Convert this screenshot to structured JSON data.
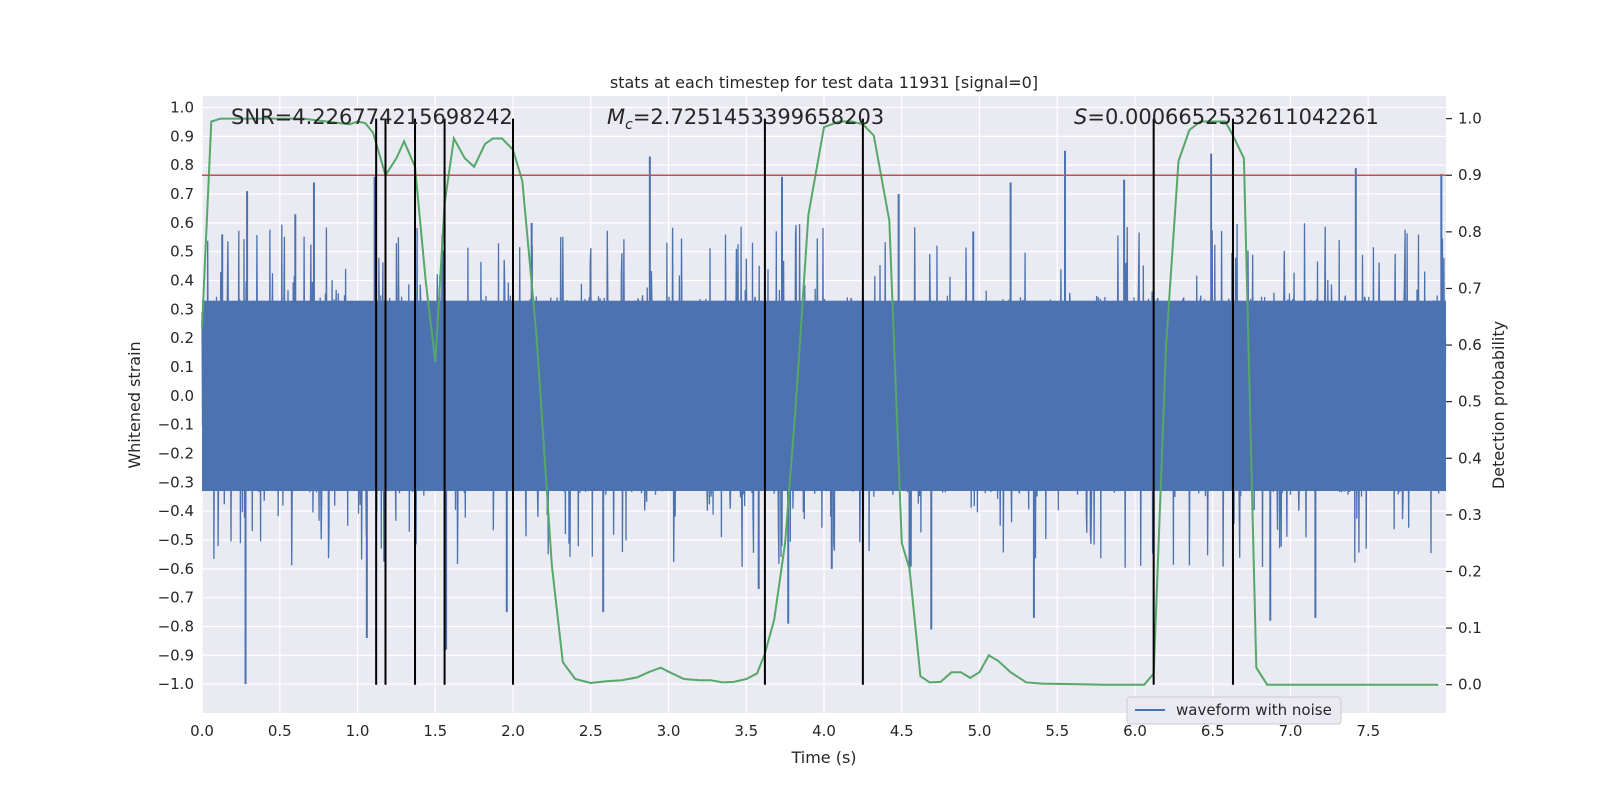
{
  "chart_data": {
    "type": "line",
    "title": "stats at each timestep for test data 11931 [signal=0]",
    "xlabel": "Time (s)",
    "ylabel": "Whitened strain",
    "ylabel_right": "Detection probability",
    "xlim": [
      0,
      8
    ],
    "ylim": [
      -1.1,
      1.04
    ],
    "ylim_right": [
      -0.05,
      1.04
    ],
    "x_ticks": [
      "0.0",
      "0.5",
      "1.0",
      "1.5",
      "2.0",
      "2.5",
      "3.0",
      "3.5",
      "4.0",
      "4.5",
      "5.0",
      "5.5",
      "6.0",
      "6.5",
      "7.0",
      "7.5"
    ],
    "x_tick_values": [
      0,
      0.5,
      1,
      1.5,
      2,
      2.5,
      3,
      3.5,
      4,
      4.5,
      5,
      5.5,
      6,
      6.5,
      7,
      7.5
    ],
    "y_ticks": [
      "1.0",
      "0.9",
      "0.8",
      "0.7",
      "0.6",
      "0.5",
      "0.4",
      "0.3",
      "0.2",
      "0.1",
      "0.0",
      "-0.1",
      "-0.2",
      "-0.3",
      "-0.4",
      "-0.5",
      "-0.6",
      "-0.7",
      "-0.8",
      "-0.9",
      "-1.0"
    ],
    "y_tick_values": [
      1,
      0.9,
      0.8,
      0.7,
      0.6,
      0.5,
      0.4,
      0.3,
      0.2,
      0.1,
      0,
      -0.1,
      -0.2,
      -0.3,
      -0.4,
      -0.5,
      -0.6,
      -0.7,
      -0.8,
      -0.9,
      -1.0
    ],
    "y_right_ticks": [
      "1.0",
      "0.9",
      "0.8",
      "0.7",
      "0.6",
      "0.5",
      "0.4",
      "0.3",
      "0.2",
      "0.1",
      "0.0"
    ],
    "y_right_tick_values": [
      1,
      0.9,
      0.8,
      0.7,
      0.6,
      0.5,
      0.4,
      0.3,
      0.2,
      0.1,
      0
    ],
    "annotations": {
      "snr": "SNR=4.226774215698242",
      "mc_prefix": "M",
      "mc_sub": "c",
      "mc_value": "=2.7251453399658203",
      "s_prefix": "S",
      "s_value": "=0.0006652532611042261"
    },
    "threshold": 0.9,
    "event_lines_x": [
      1.12,
      1.18,
      1.37,
      1.56,
      2.0,
      3.62,
      4.25,
      6.12,
      6.63
    ],
    "series": [
      {
        "name": "waveform with noise",
        "color": "#4c72b0",
        "axis": "left",
        "description": "whitened strain noise, dense oscillation mostly within ±0.35 with spikes to ±1.0",
        "spikes": [
          [
            0.28,
            -1.0
          ],
          [
            0.29,
            0.71
          ],
          [
            0.13,
            0.56
          ],
          [
            0.6,
            0.63
          ],
          [
            0.72,
            0.74
          ],
          [
            1.06,
            -0.84
          ],
          [
            1.11,
            0.76
          ],
          [
            1.57,
            -0.88
          ],
          [
            1.96,
            -0.75
          ],
          [
            2.12,
            0.6
          ],
          [
            2.58,
            -0.75
          ],
          [
            2.88,
            0.83
          ],
          [
            3.58,
            -0.67
          ],
          [
            3.73,
            0.76
          ],
          [
            3.77,
            -0.79
          ],
          [
            4.05,
            -0.6
          ],
          [
            4.48,
            0.7
          ],
          [
            4.55,
            -0.61
          ],
          [
            4.69,
            -0.81
          ],
          [
            4.96,
            0.57
          ],
          [
            5.2,
            0.74
          ],
          [
            5.35,
            -0.77
          ],
          [
            5.55,
            0.85
          ],
          [
            5.93,
            0.75
          ],
          [
            6.49,
            0.84
          ],
          [
            6.87,
            -0.78
          ],
          [
            7.16,
            -0.77
          ],
          [
            7.42,
            0.79
          ],
          [
            7.97,
            0.77
          ]
        ]
      },
      {
        "name": "detection probability",
        "color": "#55a868",
        "axis": "right",
        "x": [
          0.0,
          0.06,
          0.12,
          0.2,
          0.35,
          0.5,
          0.65,
          0.8,
          0.95,
          1.0,
          1.05,
          1.1,
          1.18,
          1.25,
          1.3,
          1.37,
          1.44,
          1.5,
          1.56,
          1.62,
          1.69,
          1.75,
          1.82,
          1.87,
          1.93,
          2.0,
          2.06,
          2.15,
          2.25,
          2.32,
          2.4,
          2.5,
          2.6,
          2.7,
          2.8,
          2.88,
          2.95,
          3.0,
          3.1,
          3.2,
          3.27,
          3.35,
          3.42,
          3.5,
          3.57,
          3.62,
          3.68,
          3.75,
          3.82,
          3.9,
          4.0,
          4.1,
          4.18,
          4.25,
          4.32,
          4.42,
          4.5,
          4.55,
          4.62,
          4.68,
          4.75,
          4.82,
          4.88,
          4.94,
          5.0,
          5.06,
          5.12,
          5.2,
          5.3,
          5.4,
          5.6,
          5.8,
          6.0,
          6.06,
          6.12,
          6.2,
          6.28,
          6.35,
          6.42,
          6.5,
          6.58,
          6.63,
          6.7,
          6.78,
          6.85,
          7.0,
          7.5,
          7.95
        ],
        "y": [
          0.63,
          0.995,
          1.0,
          1.0,
          1.0,
          1.0,
          1.0,
          0.995,
          0.99,
          0.995,
          0.992,
          0.975,
          0.9,
          0.93,
          0.96,
          0.915,
          0.71,
          0.57,
          0.85,
          0.965,
          0.93,
          0.915,
          0.955,
          0.965,
          0.965,
          0.945,
          0.89,
          0.62,
          0.21,
          0.04,
          0.01,
          0.003,
          0.006,
          0.008,
          0.013,
          0.023,
          0.03,
          0.023,
          0.01,
          0.008,
          0.008,
          0.004,
          0.005,
          0.01,
          0.02,
          0.055,
          0.115,
          0.25,
          0.5,
          0.83,
          0.985,
          0.995,
          0.995,
          0.99,
          0.97,
          0.82,
          0.25,
          0.205,
          0.015,
          0.004,
          0.005,
          0.022,
          0.022,
          0.012,
          0.022,
          0.052,
          0.042,
          0.022,
          0.004,
          0.002,
          0.001,
          0.0,
          0.0,
          0.0,
          0.02,
          0.6,
          0.925,
          0.98,
          0.995,
          0.995,
          0.995,
          0.97,
          0.93,
          0.03,
          0.0,
          0.0,
          0.0,
          0.0
        ]
      },
      {
        "name": "threshold",
        "color": "#c44e52",
        "axis": "right",
        "x": [
          0,
          8
        ],
        "y": [
          0.9,
          0.9
        ]
      }
    ],
    "legend": {
      "location": "lower center-right",
      "entries": [
        "waveform with noise"
      ]
    }
  }
}
